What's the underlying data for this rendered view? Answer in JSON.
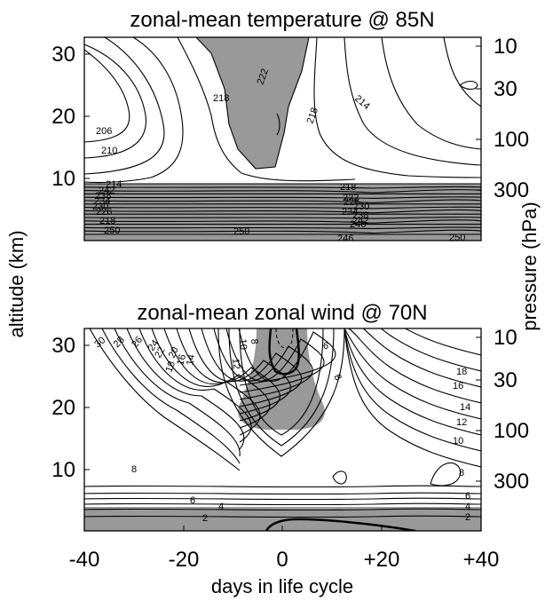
{
  "chart_data": [
    {
      "type": "contour",
      "title": "zonal-mean temperature @ 85N",
      "x_range": [
        -40,
        40
      ],
      "x_ticks": [
        "-40",
        "-20",
        "0",
        "+20",
        "+40"
      ],
      "y_left_range": [
        0,
        33
      ],
      "y_left_ticks": [
        "10",
        "20",
        "30"
      ],
      "y_right_ticks": [
        "10",
        "30",
        "100",
        "300"
      ],
      "shading": "grey fill where temperature > 220 K (upper centre) and in the lowest ~7 km",
      "contour_labels": [
        "206",
        "210",
        "214",
        "218",
        "222",
        "218",
        "214",
        "218",
        "222",
        "226",
        "230",
        "234",
        "238",
        "242",
        "246",
        "250",
        "250",
        "250",
        "246",
        "242",
        "238",
        "234",
        "230",
        "226",
        "218"
      ],
      "contour_levels_warm_cap": [
        {
          "level": 218,
          "points": [
            [
              -19,
              33
            ],
            [
              -13,
              32
            ],
            [
              -9,
              30
            ],
            [
              -7,
              27
            ],
            [
              -5,
              23
            ],
            [
              -4,
              19
            ],
            [
              -3,
              15
            ],
            [
              -1,
              12
            ],
            [
              4,
              9
            ],
            [
              12,
              8.6
            ]
          ]
        },
        {
          "level": 222,
          "points": [
            [
              -14,
              33
            ],
            [
              -10,
              31
            ],
            [
              -6,
              27
            ],
            [
              -4,
              23
            ],
            [
              -3,
              19
            ],
            [
              -1,
              16
            ],
            [
              0,
              14
            ],
            [
              5,
              13
            ],
            [
              10,
              13
            ],
            [
              12,
              15
            ],
            [
              11,
              19
            ],
            [
              9,
              23
            ],
            [
              6,
              28
            ],
            [
              4,
              33
            ]
          ]
        },
        {
          "level": 218,
          "points": [
            [
              9,
              33
            ],
            [
              10,
              28
            ],
            [
              12,
              23
            ],
            [
              14,
              19
            ],
            [
              17,
              16
            ],
            [
              22,
              14
            ],
            [
              30,
              13.6
            ],
            [
              40,
              13.5
            ]
          ]
        },
        {
          "level": 214,
          "points": [
            [
              16,
              33
            ],
            [
              17,
              28
            ],
            [
              19,
              24
            ],
            [
              23,
              20
            ],
            [
              30,
              17
            ],
            [
              40,
              16
            ]
          ]
        }
      ]
    },
    {
      "type": "contour",
      "title": "zonal-mean zonal wind @ 70N",
      "x_range": [
        -40,
        40
      ],
      "x_ticks": [
        "-40",
        "-20",
        "0",
        "+20",
        "+40"
      ],
      "y_left_range": [
        0,
        33
      ],
      "y_left_ticks": [
        "10",
        "20",
        "30"
      ],
      "y_right_ticks": [
        "10",
        "30",
        "100",
        "300"
      ],
      "shading": "grey fill where wind < 4 m/s (centre column above ~11 km) and 0–3 km band",
      "contour_labels": [
        "30",
        "28",
        "26",
        "24",
        "22",
        "20",
        "18",
        "16",
        "14",
        "12",
        "10",
        "8",
        "6",
        "4",
        "2",
        "8",
        "6",
        "4",
        "2",
        "6",
        "8",
        "18",
        "16",
        "14",
        "12",
        "10",
        "8",
        "6",
        "4",
        "2",
        "8"
      ]
    }
  ],
  "x_axis_label": "days in life cycle",
  "y_left_label": "altitude (km)",
  "y_right_label": "pressure (hPa)"
}
